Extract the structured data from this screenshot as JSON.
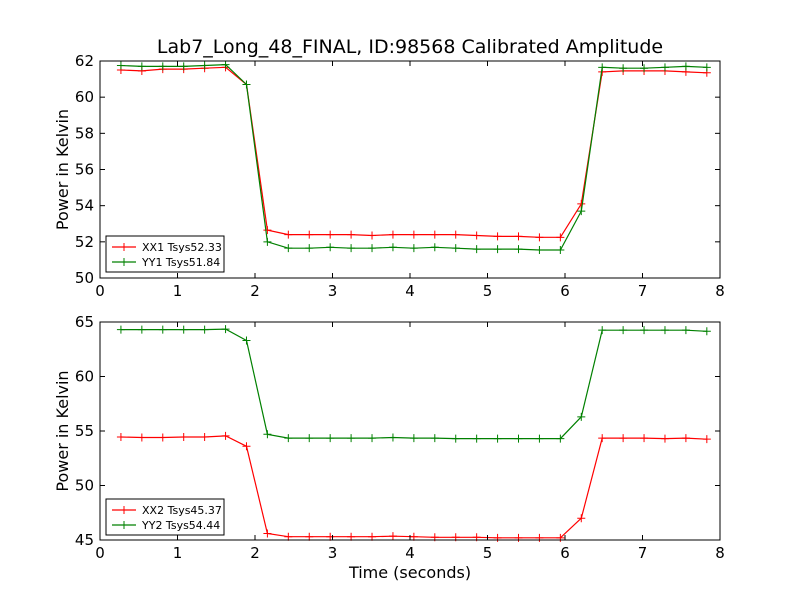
{
  "title": "Lab7_Long_48_FINAL, ID:98568 Calibrated Amplitude",
  "colors": {
    "red_series": "#ff0000",
    "green_series": "#008000",
    "axes": "#000000",
    "background": "#ffffff"
  },
  "chart_data": [
    {
      "type": "line",
      "title": "Lab7_Long_48_FINAL, ID:98568 Calibrated Amplitude",
      "xlabel": "",
      "ylabel": "Power in Kelvin",
      "xlim": [
        0,
        8
      ],
      "ylim": [
        50,
        62
      ],
      "xticks": [
        "0",
        "1",
        "2",
        "3",
        "4",
        "5",
        "6",
        "7",
        "8"
      ],
      "yticks": [
        "50",
        "52",
        "54",
        "56",
        "58",
        "60",
        "62"
      ],
      "grid": false,
      "legend_position": "lower-left",
      "x": [
        0.27,
        0.54,
        0.81,
        1.08,
        1.35,
        1.62,
        1.89,
        2.16,
        2.43,
        2.7,
        2.97,
        3.24,
        3.51,
        3.78,
        4.05,
        4.32,
        4.59,
        4.86,
        5.13,
        5.4,
        5.67,
        5.94,
        6.21,
        6.48,
        6.75,
        7.02,
        7.29,
        7.56,
        7.83
      ],
      "series": [
        {
          "name": "XX1 Tsys52.33",
          "color": "#ff0000",
          "marker": "+",
          "values": [
            61.5,
            61.45,
            61.55,
            61.55,
            61.6,
            61.65,
            60.7,
            52.65,
            52.4,
            52.4,
            52.4,
            52.4,
            52.35,
            52.4,
            52.4,
            52.4,
            52.4,
            52.35,
            52.3,
            52.3,
            52.25,
            52.25,
            54.1,
            61.4,
            61.45,
            61.45,
            61.45,
            61.4,
            61.35
          ]
        },
        {
          "name": "YY1 Tsys51.84",
          "color": "#008000",
          "marker": "+",
          "values": [
            61.75,
            61.7,
            61.7,
            61.7,
            61.75,
            61.8,
            60.7,
            52.0,
            51.65,
            51.65,
            51.7,
            51.65,
            51.65,
            51.7,
            51.65,
            51.7,
            51.65,
            51.6,
            51.6,
            51.6,
            51.55,
            51.55,
            53.7,
            61.65,
            61.6,
            61.6,
            61.65,
            61.7,
            61.65
          ]
        }
      ]
    },
    {
      "type": "line",
      "title": "",
      "xlabel": "Time (seconds)",
      "ylabel": "Power in Kelvin",
      "xlim": [
        0,
        8
      ],
      "ylim": [
        45,
        65
      ],
      "xticks": [
        "0",
        "1",
        "2",
        "3",
        "4",
        "5",
        "6",
        "7",
        "8"
      ],
      "yticks": [
        "45",
        "50",
        "55",
        "60",
        "65"
      ],
      "grid": false,
      "legend_position": "lower-left",
      "x": [
        0.27,
        0.54,
        0.81,
        1.08,
        1.35,
        1.62,
        1.89,
        2.16,
        2.43,
        2.7,
        2.97,
        3.24,
        3.51,
        3.78,
        4.05,
        4.32,
        4.59,
        4.86,
        5.13,
        5.4,
        5.67,
        5.94,
        6.21,
        6.48,
        6.75,
        7.02,
        7.29,
        7.56,
        7.83
      ],
      "series": [
        {
          "name": "XX2 Tsys45.37",
          "color": "#ff0000",
          "marker": "+",
          "values": [
            54.45,
            54.4,
            54.4,
            54.45,
            54.45,
            54.55,
            53.6,
            45.6,
            45.3,
            45.3,
            45.3,
            45.3,
            45.3,
            45.35,
            45.3,
            45.25,
            45.25,
            45.25,
            45.2,
            45.2,
            45.2,
            45.2,
            47.0,
            54.35,
            54.35,
            54.35,
            54.3,
            54.35,
            54.25
          ]
        },
        {
          "name": "YY2 Tsys54.44",
          "color": "#008000",
          "marker": "+",
          "values": [
            64.3,
            64.3,
            64.3,
            64.3,
            64.3,
            64.35,
            63.3,
            54.7,
            54.35,
            54.35,
            54.35,
            54.35,
            54.35,
            54.4,
            54.35,
            54.35,
            54.3,
            54.3,
            54.3,
            54.3,
            54.3,
            54.3,
            56.3,
            64.25,
            64.25,
            64.25,
            64.25,
            64.25,
            64.15
          ]
        }
      ]
    }
  ]
}
